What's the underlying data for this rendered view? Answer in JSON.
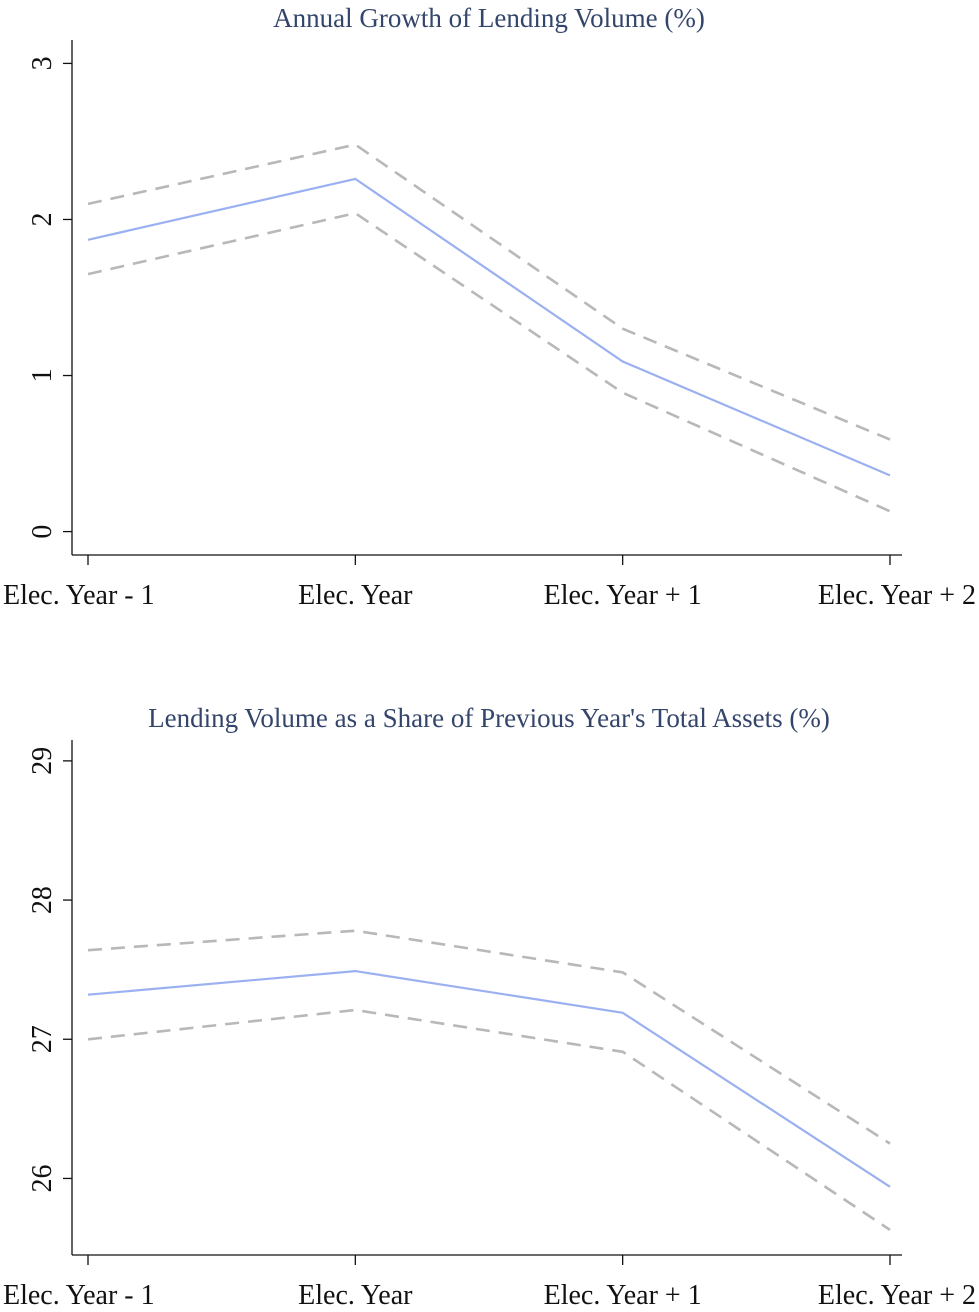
{
  "colors": {
    "estimate": "#9ab0f0",
    "confidence_band": "#b8b8b8",
    "title": "#34456b",
    "axis": "#111111"
  },
  "chart_data": [
    {
      "type": "line",
      "title": "Annual Growth of Lending Volume (%)",
      "xlabel": "",
      "ylabel": "",
      "categories": [
        "Elec. Year - 1",
        "Elec. Year",
        "Elec. Year + 1",
        "Elec. Year + 2"
      ],
      "series": [
        {
          "values": [
            1.87,
            2.26,
            1.09,
            0.36
          ]
        },
        {
          "values": [
            2.1,
            2.48,
            1.3,
            0.59
          ]
        },
        {
          "values": [
            1.65,
            2.04,
            0.89,
            0.13
          ]
        }
      ],
      "ylim": [
        -0.15,
        3.15
      ],
      "yticks": [
        0,
        1,
        2,
        3
      ],
      "grid": false,
      "legend": "none"
    },
    {
      "type": "line",
      "title": "Lending Volume as a Share of Previous Year's Total Assets (%)",
      "xlabel": "",
      "ylabel": "",
      "categories": [
        "Elec. Year - 1",
        "Elec. Year",
        "Elec. Year + 1",
        "Elec. Year + 2"
      ],
      "series": [
        {
          "values": [
            27.32,
            27.49,
            27.19,
            25.94
          ]
        },
        {
          "values": [
            27.64,
            27.78,
            27.48,
            26.25
          ]
        },
        {
          "values": [
            27.0,
            27.21,
            26.91,
            25.63
          ]
        }
      ],
      "ylim": [
        25.45,
        29.15
      ],
      "yticks": [
        26,
        27,
        28,
        29
      ],
      "grid": false,
      "legend": "none"
    }
  ]
}
